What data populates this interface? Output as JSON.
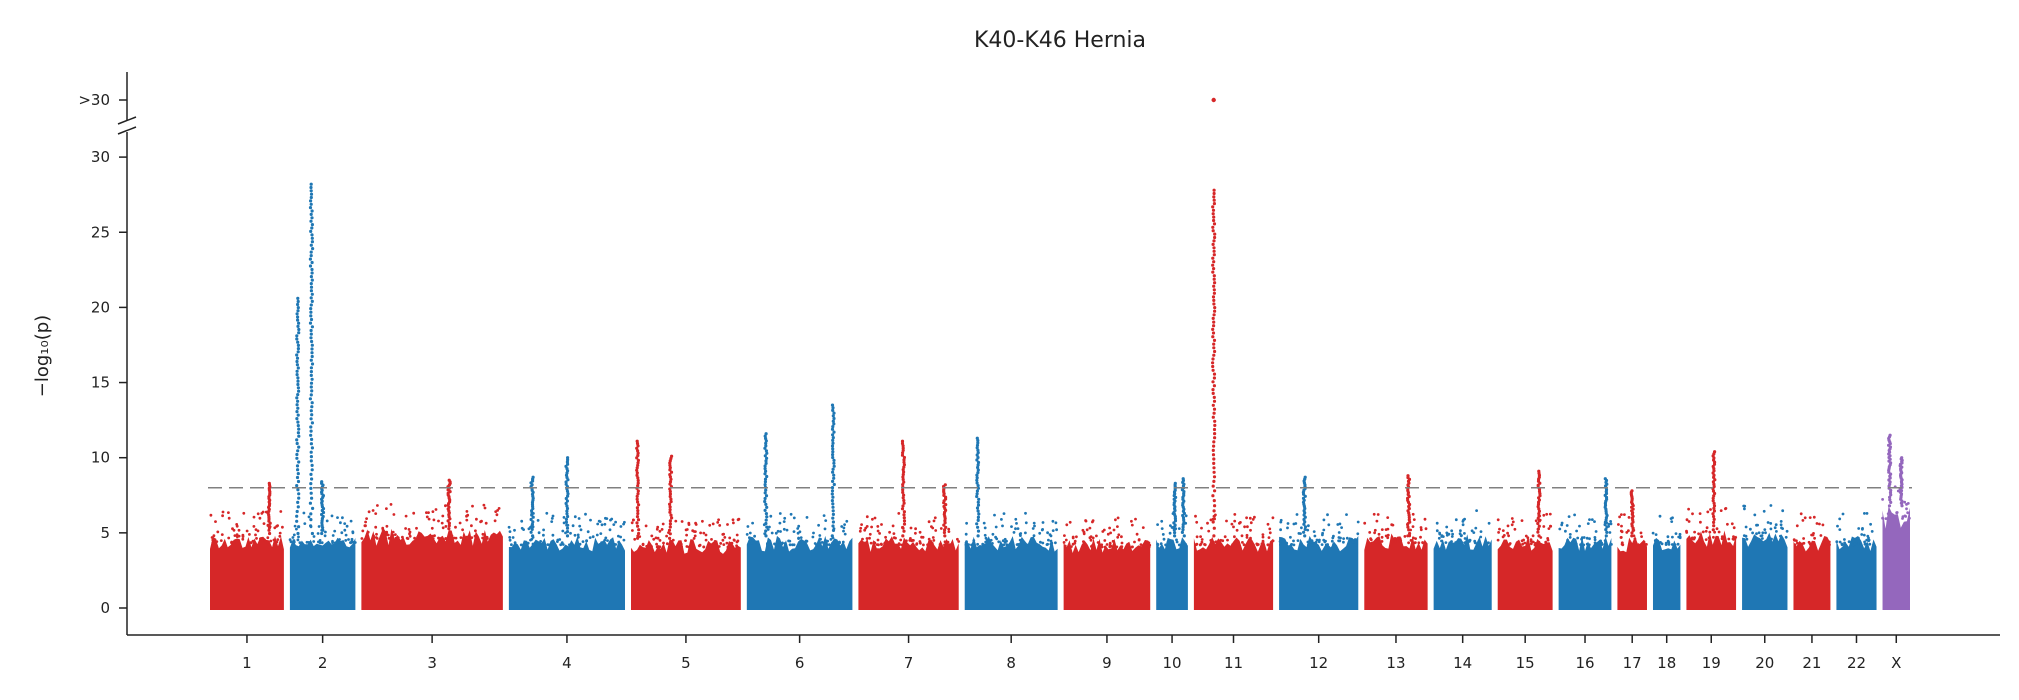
{
  "chart_data": {
    "type": "scatter",
    "subtype": "manhattan",
    "title": "K40-K46 Hernia",
    "ylabel": "−log₁₀(p)",
    "xlabel": "",
    "ylim": [
      0,
      30
    ],
    "y_ticks": [
      "0",
      "5",
      "10",
      "15",
      "20",
      "25",
      "30"
    ],
    "y_break_label": ">30",
    "significance_threshold": 8,
    "grid": false,
    "colors": {
      "odd": "#d62728",
      "even": "#1f77b4",
      "X": "#9467bd",
      "threshold": "#808080"
    },
    "chromosomes": [
      {
        "label": "1",
        "baseline": 6.2,
        "peaks": [
          {
            "pos": 0.8,
            "y": 8.3
          }
        ]
      },
      {
        "label": "2",
        "baseline": 6.2,
        "peaks": [
          {
            "pos": 0.12,
            "y": 20.6
          },
          {
            "pos": 0.33,
            "y": 28.2
          },
          {
            "pos": 0.5,
            "y": 8.4
          }
        ]
      },
      {
        "label": "3",
        "baseline": 6.6,
        "peaks": [
          {
            "pos": 0.62,
            "y": 8.5
          }
        ]
      },
      {
        "label": "4",
        "baseline": 6.0,
        "peaks": [
          {
            "pos": 0.2,
            "y": 8.7
          },
          {
            "pos": 0.5,
            "y": 10.0
          }
        ]
      },
      {
        "label": "5",
        "baseline": 5.8,
        "peaks": [
          {
            "pos": 0.06,
            "y": 11.1
          },
          {
            "pos": 0.36,
            "y": 10.1
          }
        ]
      },
      {
        "label": "6",
        "baseline": 6.0,
        "peaks": [
          {
            "pos": 0.18,
            "y": 11.6
          },
          {
            "pos": 0.82,
            "y": 13.5
          }
        ]
      },
      {
        "label": "7",
        "baseline": 6.0,
        "peaks": [
          {
            "pos": 0.45,
            "y": 11.1
          },
          {
            "pos": 0.86,
            "y": 8.2
          }
        ]
      },
      {
        "label": "8",
        "baseline": 6.0,
        "peaks": [
          {
            "pos": 0.14,
            "y": 11.3
          }
        ]
      },
      {
        "label": "9",
        "baseline": 5.8,
        "peaks": []
      },
      {
        "label": "10",
        "baseline": 6.0,
        "peaks": [
          {
            "pos": 0.58,
            "y": 8.3
          },
          {
            "pos": 0.86,
            "y": 8.6
          }
        ]
      },
      {
        "label": "11",
        "baseline": 6.0,
        "peaks": [
          {
            "pos": 0.25,
            "y": 27.8
          }
        ]
      },
      {
        "label": "12",
        "baseline": 6.0,
        "peaks": [
          {
            "pos": 0.32,
            "y": 8.7
          }
        ]
      },
      {
        "label": "13",
        "baseline": 6.2,
        "peaks": [
          {
            "pos": 0.7,
            "y": 8.8
          }
        ]
      },
      {
        "label": "14",
        "baseline": 6.2,
        "peaks": []
      },
      {
        "label": "15",
        "baseline": 6.0,
        "peaks": [
          {
            "pos": 0.75,
            "y": 9.1
          }
        ]
      },
      {
        "label": "16",
        "baseline": 6.0,
        "peaks": [
          {
            "pos": 0.9,
            "y": 8.6
          }
        ]
      },
      {
        "label": "17",
        "baseline": 6.0,
        "peaks": [
          {
            "pos": 0.5,
            "y": 7.8
          }
        ]
      },
      {
        "label": "18",
        "baseline": 6.0,
        "peaks": []
      },
      {
        "label": "19",
        "baseline": 6.5,
        "peaks": [
          {
            "pos": 0.55,
            "y": 10.4
          }
        ]
      },
      {
        "label": "20",
        "baseline": 6.5,
        "peaks": []
      },
      {
        "label": "21",
        "baseline": 6.0,
        "peaks": []
      },
      {
        "label": "22",
        "baseline": 6.0,
        "peaks": []
      },
      {
        "label": "X",
        "baseline": 8.5,
        "peaks": [
          {
            "pos": 0.26,
            "y": 11.5
          },
          {
            "pos": 0.68,
            "y": 10.0
          }
        ]
      }
    ],
    "outliers": [
      {
        "chromosome": "11",
        "pos": 0.25,
        "label": ">30"
      }
    ]
  }
}
